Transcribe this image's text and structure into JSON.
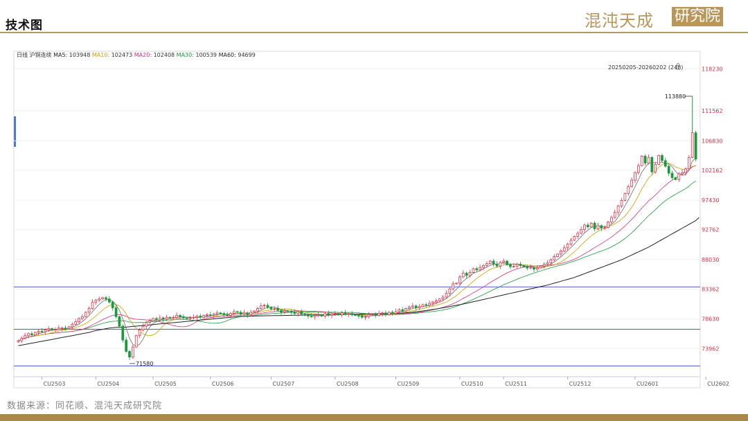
{
  "header": {
    "title": "技术图"
  },
  "brand": {
    "name": "混沌天成",
    "suffix": "研究院"
  },
  "source": "数据来源：同花顺、混沌天成研究院",
  "colors": {
    "gold": "#b9975b",
    "up": "#e0334a",
    "down": "#1a9a3a",
    "hline": "#4a5ec8"
  },
  "chart_data": {
    "type": "candlestick",
    "period": "日线",
    "symbol": "沪铜连续",
    "ma_legend": [
      {
        "label": "MA5:",
        "value": "103948",
        "color": "#222222"
      },
      {
        "label": "MA10:",
        "value": "102473",
        "color": "#c8a000"
      },
      {
        "label": "MA20:",
        "value": "102408",
        "color": "#d0307a"
      },
      {
        "label": "MA30:",
        "value": "100539",
        "color": "#1a9a3a"
      },
      {
        "label": "MA60:",
        "value": "94699",
        "color": "#222222"
      }
    ],
    "range_label": "20250205-20260202 (246)",
    "y_ticks": [
      118230,
      111562,
      106830,
      102162,
      97430,
      92762,
      88030,
      83362,
      78630,
      73962
    ],
    "y_range": [
      69500,
      121000
    ],
    "x_labels": [
      "CU2503",
      "CU2504",
      "CU2505",
      "CU2506",
      "CU2507",
      "CU2508",
      "CU2509",
      "CU2510",
      "CU2511",
      "CU2512",
      "CU2601",
      "CU2602"
    ],
    "x_label_index": [
      7,
      23,
      40,
      57,
      75,
      94,
      112,
      131,
      144,
      163,
      183,
      204
    ],
    "h_lines": [
      83700,
      77000,
      71200
    ],
    "max_annotation": {
      "label": "113880",
      "value": 113880
    },
    "min_annotation": {
      "label": "71580",
      "value": 71580
    },
    "close": [
      75200,
      75600,
      76000,
      76300,
      76100,
      76500,
      76700,
      76600,
      76900,
      77100,
      76900,
      77000,
      77200,
      77200,
      77100,
      77400,
      77800,
      78200,
      78700,
      79000,
      79700,
      80300,
      81300,
      81600,
      81800,
      82000,
      81800,
      81300,
      80400,
      79000,
      77500,
      75300,
      73500,
      72600,
      74200,
      76000,
      76900,
      77500,
      78100,
      78300,
      78700,
      78500,
      78800,
      78600,
      78900,
      78800,
      78900,
      79200,
      79000,
      78800,
      78700,
      78800,
      78900,
      79100,
      78900,
      79200,
      79300,
      79200,
      79400,
      79600,
      79500,
      79300,
      79200,
      79500,
      79800,
      79700,
      79400,
      79600,
      79300,
      79700,
      79900,
      80300,
      80700,
      80800,
      80500,
      80200,
      80300,
      80000,
      79700,
      79900,
      79800,
      79700,
      79500,
      79800,
      79400,
      79200,
      79100,
      79000,
      79200,
      79300,
      79100,
      79500,
      79200,
      79400,
      79500,
      79300,
      79600,
      79400,
      79500,
      79300,
      79200,
      79100,
      78900,
      79000,
      79300,
      79400,
      79200,
      79500,
      79600,
      79300,
      79700,
      79500,
      79800,
      80100,
      79900,
      80300,
      80500,
      80700,
      80400,
      80600,
      80900,
      80800,
      81100,
      81300,
      81500,
      81800,
      82100,
      82700,
      83400,
      84200,
      84300,
      85300,
      85900,
      85500,
      86000,
      86600,
      86400,
      86800,
      87100,
      87400,
      87800,
      87300,
      87000,
      87600,
      87800,
      87200,
      86900,
      87000,
      87300,
      87100,
      86900,
      86700,
      86800,
      86500,
      86700,
      87000,
      87300,
      87500,
      88000,
      88500,
      88900,
      89400,
      89900,
      90500,
      91100,
      91700,
      92200,
      92800,
      93500,
      93200,
      93800,
      92900,
      93400,
      93000,
      93100,
      94000,
      94700,
      95500,
      96500,
      97400,
      98500,
      99600,
      100600,
      101800,
      102900,
      104400,
      103300,
      104200,
      101900,
      103100,
      104500,
      103700,
      102800,
      101700,
      101000,
      100700,
      101600,
      101800,
      102400,
      104200,
      108100,
      103948
    ],
    "ma60": [
      74400,
      74500,
      74600,
      74700,
      74800,
      74900,
      75000,
      75100,
      75200,
      75300,
      75400,
      75500,
      75600,
      75700,
      75800,
      75900,
      76000,
      76100,
      76200,
      76300,
      76400,
      76500,
      76650,
      76800,
      76900,
      77000,
      77100,
      77200,
      77250,
      77300,
      77300,
      77300,
      77350,
      77400,
      77450,
      77500,
      77550,
      77600,
      77650,
      77700,
      77750,
      77800,
      77850,
      77900,
      77950,
      78000,
      78050,
      78100,
      78150,
      78200,
      78250,
      78300,
      78350,
      78400,
      78450,
      78500,
      78550,
      78600,
      78650,
      78700,
      78750,
      78800,
      78850,
      78900,
      78950,
      79000,
      79020,
      79040,
      79060,
      79080,
      79100,
      79110,
      79120,
      79130,
      79140,
      79150,
      79160,
      79170,
      79180,
      79190,
      79200,
      79210,
      79220,
      79230,
      79240,
      79250,
      79260,
      79270,
      79280,
      79290,
      79300,
      79310,
      79320,
      79330,
      79340,
      79350,
      79360,
      79370,
      79380,
      79390,
      79400,
      79410,
      79420,
      79430,
      79440,
      79450,
      79460,
      79470,
      79480,
      79490,
      79500,
      79510,
      79520,
      79540,
      79560,
      79600,
      79650,
      79700,
      79760,
      79820,
      79900,
      79980,
      80060,
      80140,
      80220,
      80300,
      80400,
      80500,
      80600,
      80700,
      80800,
      80900,
      81000,
      81120,
      81240,
      81360,
      81480,
      81600,
      81720,
      81840,
      81960,
      82080,
      82200,
      82320,
      82440,
      82560,
      82680,
      82800,
      82920,
      83040,
      83160,
      83280,
      83400,
      83520,
      83640,
      83760,
      83880,
      84000,
      84150,
      84300,
      84450,
      84600,
      84750,
      84900,
      85050,
      85200,
      85400,
      85600,
      85800,
      86000,
      86200,
      86400,
      86600,
      86800,
      87000,
      87200,
      87400,
      87600,
      87800,
      88000,
      88250,
      88500,
      88750,
      89000,
      89250,
      89500,
      89750,
      90000,
      90300,
      90600,
      90900,
      91200,
      91500,
      91800,
      92100,
      92400,
      92700,
      93000,
      93300,
      93600,
      93900,
      94200,
      94699
    ]
  }
}
